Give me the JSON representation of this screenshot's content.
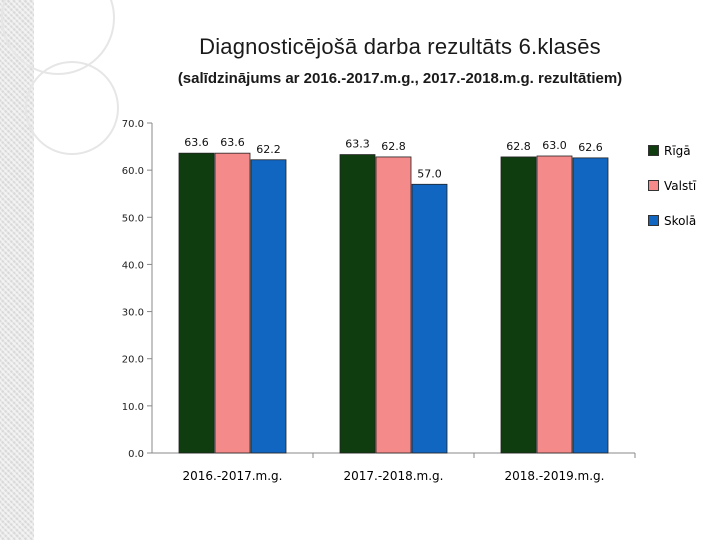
{
  "title": "Diagnosticējošā darba rezultāts 6.klasēs",
  "subtitle": "(salīdzinājums ar 2016.-2017.m.g., 2017.-2018.m.g. rezultātiem)",
  "chart_data": {
    "type": "bar",
    "categories": [
      "2016.-2017.m.g.",
      "2017.-2018.m.g.",
      "2018.-2019.m.g."
    ],
    "series": [
      {
        "name": "Rīgā",
        "values": [
          63.6,
          63.3,
          62.8
        ],
        "color": "#0f3d0f"
      },
      {
        "name": "Valstī",
        "values": [
          63.6,
          62.8,
          63.0
        ],
        "color": "#f58a8a"
      },
      {
        "name": "Skolā",
        "values": [
          62.2,
          57.0,
          62.6
        ],
        "color": "#1166c2"
      }
    ],
    "ylim": [
      0,
      70
    ],
    "ytick_labels": [
      "0.0",
      "10.0",
      "20.0",
      "30.0",
      "40.0",
      "50.0",
      "60.0",
      "70.0"
    ],
    "data_label_format": "one decimal",
    "grid": false,
    "legend_position": "right"
  }
}
